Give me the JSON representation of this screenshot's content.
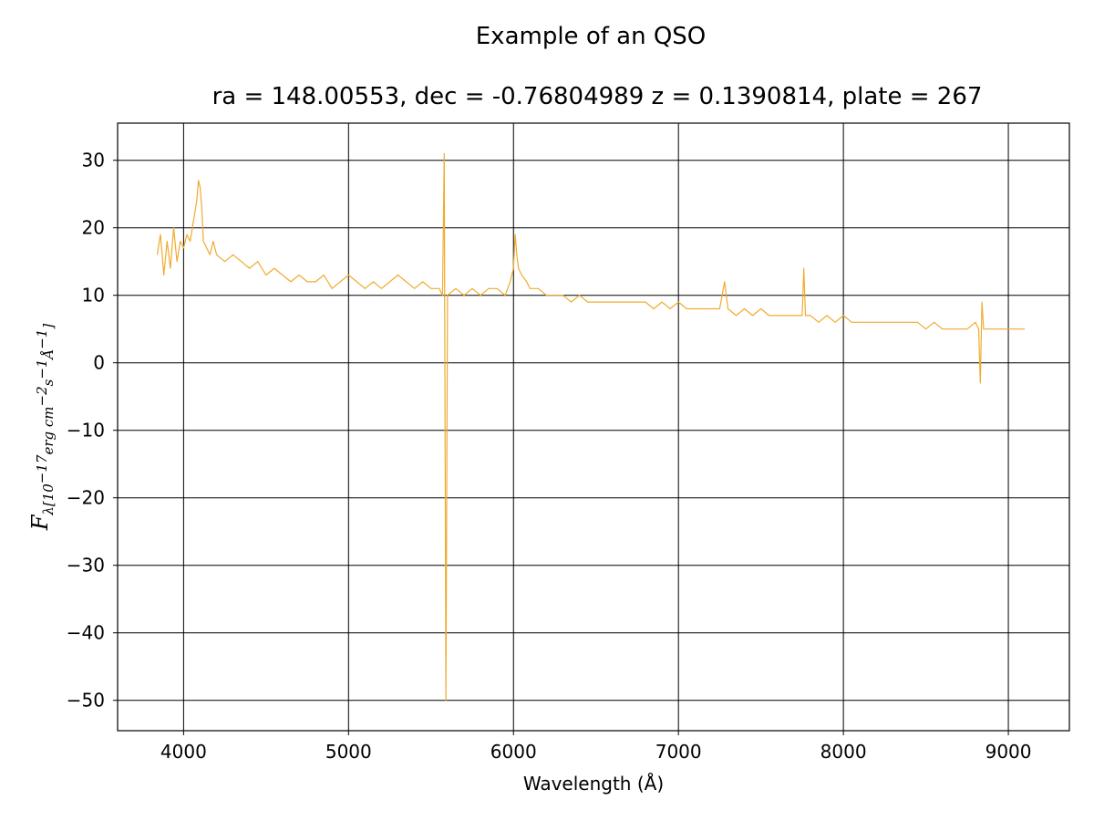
{
  "chart_data": {
    "type": "line",
    "suptitle": "Example of an QSO",
    "title": "ra = 148.00553, dec = -0.76804989 z = 0.1390814, plate = 267",
    "xlabel": "Wavelength (Å)",
    "ylabel": {
      "main": "F",
      "subscript": "λ[10",
      "sup1": "−17",
      "mid1": "erg cm",
      "sup2": "−2",
      "mid2": "s",
      "sup3": "−1",
      "mid3": "Å",
      "sup4": "−1",
      "end": "]"
    },
    "xlim": [
      3600,
      9370
    ],
    "ylim": [
      -54.5,
      35.5
    ],
    "xticks": [
      4000,
      5000,
      6000,
      7000,
      8000,
      9000
    ],
    "yticks": [
      30,
      20,
      10,
      0,
      -10,
      -20,
      -30,
      -40,
      -50
    ],
    "ytick_labels": [
      "30",
      "20",
      "10",
      "0",
      "−10",
      "−20",
      "−30",
      "−40",
      "−50"
    ],
    "grid": true,
    "line_color": "#f0ab2f",
    "series": [
      {
        "x": [
          3840,
          3860,
          3880,
          3900,
          3920,
          3940,
          3960,
          3980,
          4000,
          4020,
          4040,
          4060,
          4080,
          4090,
          4100,
          4110,
          4120,
          4140,
          4160,
          4180,
          4200,
          4250,
          4300,
          4350,
          4400,
          4450,
          4500,
          4550,
          4600,
          4650,
          4700,
          4750,
          4800,
          4850,
          4900,
          4950,
          5000,
          5050,
          5100,
          5150,
          5200,
          5250,
          5300,
          5350,
          5400,
          5450,
          5500,
          5550,
          5570,
          5580,
          5590,
          5600,
          5650,
          5700,
          5750,
          5800,
          5850,
          5900,
          5950,
          5980,
          6000,
          6010,
          6020,
          6030,
          6050,
          6080,
          6100,
          6150,
          6200,
          6250,
          6300,
          6350,
          6400,
          6450,
          6500,
          6550,
          6600,
          6650,
          6700,
          6750,
          6800,
          6850,
          6900,
          6950,
          7000,
          7050,
          7100,
          7150,
          7200,
          7250,
          7280,
          7300,
          7350,
          7400,
          7450,
          7500,
          7550,
          7600,
          7650,
          7700,
          7750,
          7760,
          7770,
          7800,
          7850,
          7900,
          7950,
          8000,
          8050,
          8100,
          8150,
          8200,
          8250,
          8300,
          8350,
          8400,
          8450,
          8500,
          8550,
          8600,
          8650,
          8700,
          8750,
          8800,
          8820,
          8830,
          8840,
          8850,
          8900,
          8950,
          9000,
          9050,
          9100
        ],
        "y": [
          16,
          19,
          13,
          18,
          14,
          20,
          15,
          18,
          17,
          19,
          18,
          21,
          24,
          27,
          26,
          23,
          18,
          17,
          16,
          18,
          16,
          15,
          16,
          15,
          14,
          15,
          13,
          14,
          13,
          12,
          13,
          12,
          12,
          13,
          11,
          12,
          13,
          12,
          11,
          12,
          11,
          12,
          13,
          12,
          11,
          12,
          11,
          11,
          10,
          31,
          -50,
          10,
          11,
          10,
          11,
          10,
          11,
          11,
          10,
          12,
          14,
          19,
          16,
          14,
          13,
          12,
          11,
          11,
          10,
          10,
          10,
          9,
          10,
          9,
          9,
          9,
          9,
          9,
          9,
          9,
          9,
          8,
          9,
          8,
          9,
          8,
          8,
          8,
          8,
          8,
          12,
          8,
          7,
          8,
          7,
          8,
          7,
          7,
          7,
          7,
          7,
          14,
          7,
          7,
          6,
          7,
          6,
          7,
          6,
          6,
          6,
          6,
          6,
          6,
          6,
          6,
          6,
          5,
          6,
          5,
          5,
          5,
          5,
          6,
          5,
          -3,
          9,
          5,
          5,
          5,
          5,
          5,
          5
        ]
      }
    ]
  }
}
